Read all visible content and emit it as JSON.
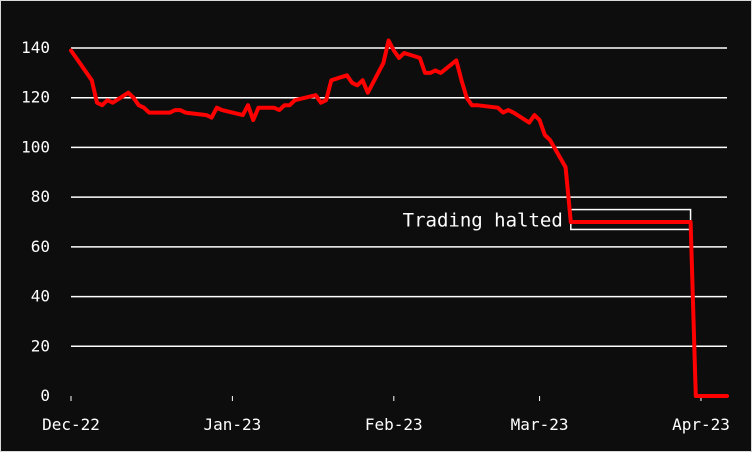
{
  "chart_data": {
    "type": "line",
    "title": "",
    "xlabel": "",
    "ylabel": "",
    "ylim": [
      0,
      145
    ],
    "xlim": [
      "2022-12-01",
      "2023-04-06"
    ],
    "grid": "horizontal",
    "y_ticks": [
      0,
      20,
      40,
      60,
      80,
      100,
      120,
      140
    ],
    "x_ticks": [
      {
        "date": "2022-12-01",
        "label": "Dec-22"
      },
      {
        "date": "2023-01-01",
        "label": "Jan-23"
      },
      {
        "date": "2023-02-01",
        "label": "Feb-23"
      },
      {
        "date": "2023-03-01",
        "label": "Mar-23"
      },
      {
        "date": "2023-04-01",
        "label": "Apr-23"
      }
    ],
    "colors": {
      "line": "#ff0000",
      "background": "#0d0d0d",
      "grid": "#ffffff",
      "text": "#ffffff"
    },
    "series": [
      {
        "x": [
          "2022-12-01",
          "2022-12-02",
          "2022-12-05",
          "2022-12-06",
          "2022-12-07",
          "2022-12-08",
          "2022-12-09",
          "2022-12-12",
          "2022-12-13",
          "2022-12-14",
          "2022-12-15",
          "2022-12-16",
          "2022-12-19",
          "2022-12-20",
          "2022-12-21",
          "2022-12-22",
          "2022-12-23",
          "2022-12-27",
          "2022-12-28",
          "2022-12-29",
          "2022-12-30",
          "2023-01-03",
          "2023-01-04",
          "2023-01-05",
          "2023-01-06",
          "2023-01-09",
          "2023-01-10",
          "2023-01-11",
          "2023-01-12",
          "2023-01-13",
          "2023-01-17",
          "2023-01-18",
          "2023-01-19",
          "2023-01-20",
          "2023-01-23",
          "2023-01-24",
          "2023-01-25",
          "2023-01-26",
          "2023-01-27",
          "2023-01-30",
          "2023-01-31",
          "2023-02-01",
          "2023-02-02",
          "2023-02-03",
          "2023-02-06",
          "2023-02-07",
          "2023-02-08",
          "2023-02-09",
          "2023-02-10",
          "2023-02-13",
          "2023-02-14",
          "2023-02-15",
          "2023-02-16",
          "2023-02-17",
          "2023-02-21",
          "2023-02-22",
          "2023-02-23",
          "2023-02-24",
          "2023-02-27",
          "2023-02-28",
          "2023-03-01",
          "2023-03-02",
          "2023-03-03",
          "2023-03-06",
          "2023-03-07",
          "2023-03-08",
          "2023-03-09",
          "2023-03-10",
          "2023-03-30",
          "2023-03-31",
          "2023-04-06"
        ],
        "y": [
          139,
          136,
          127,
          118,
          117,
          119,
          118,
          122,
          120,
          117,
          116,
          114,
          114,
          114,
          115,
          115,
          114,
          113,
          112,
          116,
          115,
          113,
          117,
          111,
          116,
          116,
          115,
          117,
          117,
          119,
          121,
          118,
          119,
          127,
          129,
          126,
          125,
          127,
          122,
          134,
          143,
          139,
          136,
          138,
          136,
          130,
          130,
          131,
          130,
          135,
          127,
          120,
          117,
          117,
          116,
          114,
          115,
          114,
          110,
          113,
          111,
          105,
          103,
          92,
          70,
          70,
          70,
          70,
          70,
          0,
          0
        ]
      }
    ],
    "annotations": [
      {
        "text": "Trading halted",
        "x_start": "2023-03-07",
        "x_end": "2023-03-30",
        "y_low": 67,
        "y_high": 75
      }
    ]
  }
}
